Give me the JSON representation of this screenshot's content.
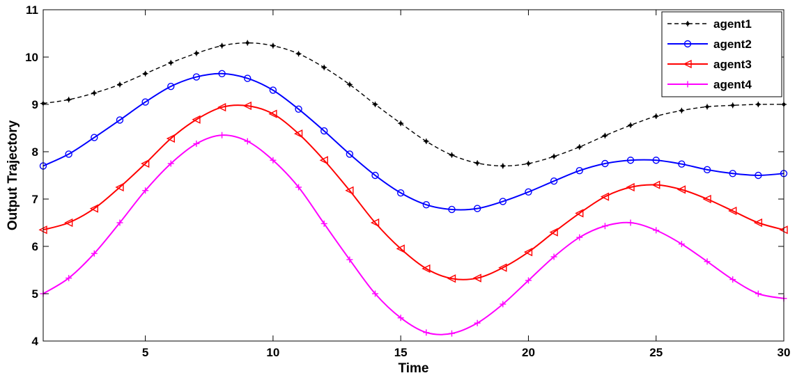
{
  "chart_data": {
    "type": "line",
    "xlabel": "Time",
    "ylabel": "Output Trajectory",
    "xlim": [
      1,
      30
    ],
    "ylim": [
      4,
      11
    ],
    "xticks": [
      5,
      10,
      15,
      20,
      25,
      30
    ],
    "yticks": [
      4,
      5,
      6,
      7,
      8,
      9,
      10,
      11
    ],
    "grid": false,
    "legend_position": "top-right",
    "x": [
      1,
      2,
      3,
      4,
      5,
      6,
      7,
      8,
      9,
      10,
      11,
      12,
      13,
      14,
      15,
      16,
      17,
      18,
      19,
      20,
      21,
      22,
      23,
      24,
      25,
      26,
      27,
      28,
      29,
      30
    ],
    "series": [
      {
        "name": "agent1",
        "color": "#000000",
        "line_style": "dashed",
        "marker": "dot",
        "values": [
          9.02,
          9.1,
          9.24,
          9.42,
          9.65,
          9.88,
          10.08,
          10.24,
          10.3,
          10.24,
          10.07,
          9.78,
          9.42,
          9.0,
          8.6,
          8.22,
          7.93,
          7.76,
          7.7,
          7.75,
          7.9,
          8.1,
          8.34,
          8.56,
          8.75,
          8.87,
          8.95,
          8.98,
          9.0,
          9.0
        ]
      },
      {
        "name": "agent2",
        "color": "#0000ff",
        "line_style": "solid",
        "marker": "circle",
        "values": [
          7.7,
          7.95,
          8.3,
          8.67,
          9.05,
          9.38,
          9.58,
          9.65,
          9.55,
          9.3,
          8.9,
          8.44,
          7.95,
          7.5,
          7.13,
          6.88,
          6.78,
          6.8,
          6.95,
          7.15,
          7.38,
          7.6,
          7.75,
          7.82,
          7.82,
          7.74,
          7.62,
          7.54,
          7.5,
          7.54
        ]
      },
      {
        "name": "agent3",
        "color": "#ff0000",
        "line_style": "solid",
        "marker": "triangle-left",
        "values": [
          6.35,
          6.5,
          6.8,
          7.25,
          7.75,
          8.28,
          8.68,
          8.94,
          8.97,
          8.8,
          8.38,
          7.82,
          7.18,
          6.5,
          5.95,
          5.53,
          5.32,
          5.33,
          5.55,
          5.88,
          6.3,
          6.7,
          7.05,
          7.25,
          7.3,
          7.2,
          7.0,
          6.75,
          6.5,
          6.35
        ]
      },
      {
        "name": "agent4",
        "color": "#ff00ff",
        "line_style": "solid",
        "marker": "plus",
        "values": [
          5.0,
          5.33,
          5.85,
          6.5,
          7.18,
          7.75,
          8.17,
          8.35,
          8.22,
          7.82,
          7.25,
          6.48,
          5.72,
          5.0,
          4.49,
          4.18,
          4.16,
          4.38,
          4.78,
          5.28,
          5.78,
          6.19,
          6.43,
          6.5,
          6.34,
          6.05,
          5.68,
          5.3,
          5.0,
          4.9
        ]
      }
    ]
  }
}
